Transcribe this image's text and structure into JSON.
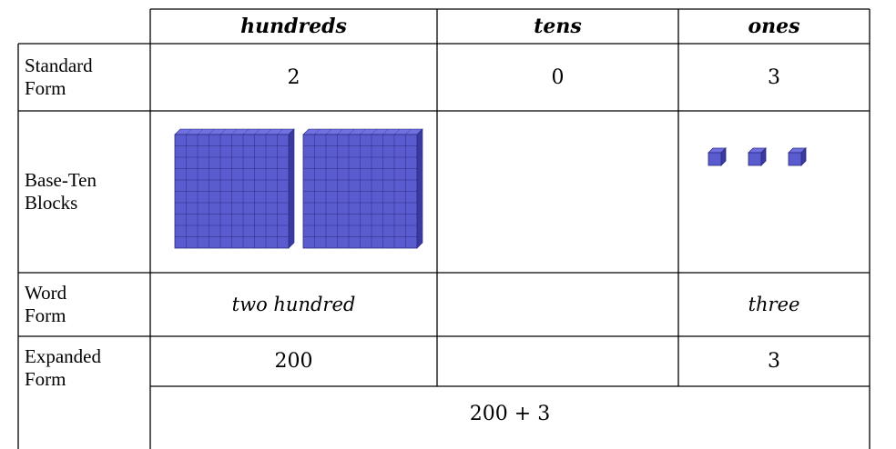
{
  "table": {
    "header": {
      "hundreds": "hundreds",
      "tens": "tens",
      "ones": "ones"
    },
    "standard_form": {
      "label": "Standard Form",
      "hundreds": "2",
      "tens": "0",
      "ones": "3"
    },
    "base_ten_blocks": {
      "label": "Base-Ten Blocks"
    },
    "word_form": {
      "label": "Word Form",
      "hundreds": "two hundred",
      "ones": "three"
    },
    "expanded_form": {
      "label": "Expanded Form",
      "hundreds": "200",
      "ones": "3",
      "total": "200 + 3"
    }
  }
}
